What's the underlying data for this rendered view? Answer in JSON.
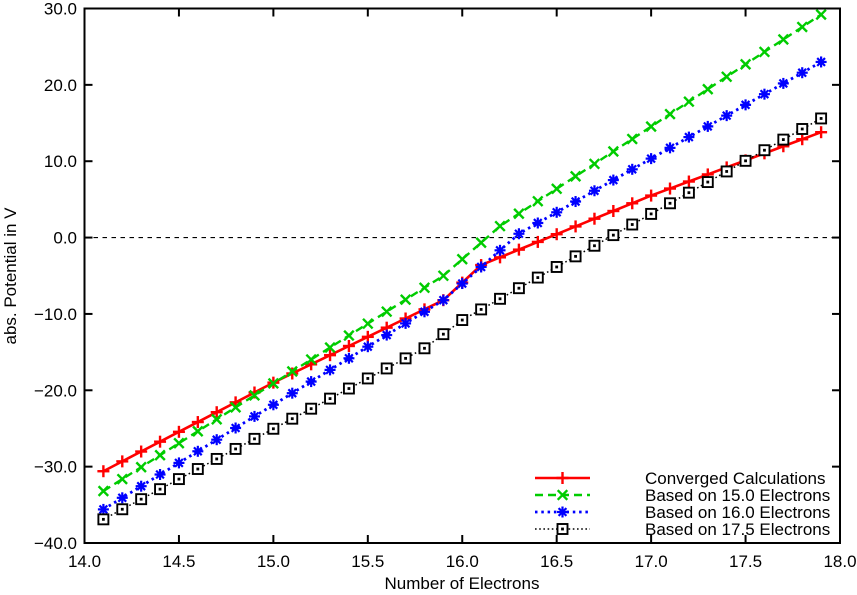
{
  "figure": {
    "background": "#ffffff",
    "axis_color": "#000000"
  },
  "chart_data": {
    "type": "line",
    "title": "",
    "xlabel": "Number of Electrons",
    "ylabel": "abs. Potential in V",
    "xlim": [
      14.0,
      18.0
    ],
    "ylim": [
      -40.0,
      30.0
    ],
    "grid": false,
    "legend_position": "bottom-right-inside",
    "zero_line": {
      "y": 0.0,
      "style": "dashed",
      "color": "#000000"
    },
    "xtick_values": [
      14.0,
      14.5,
      15.0,
      15.5,
      16.0,
      16.5,
      17.0,
      17.5,
      18.0
    ],
    "xtick_labels": [
      "14.0",
      "14.5",
      "15.0",
      "15.5",
      "16.0",
      "16.5",
      "17.0",
      "17.5",
      "18.0"
    ],
    "ytick_values": [
      -40,
      -30,
      -20,
      -10,
      0,
      10,
      20,
      30
    ],
    "ytick_labels": [
      "−40.0",
      "−30.0",
      "−20.0",
      "−10.0",
      "0.0",
      "10.0",
      "20.0",
      "30.0"
    ],
    "x": [
      14.1,
      14.2,
      14.3,
      14.4,
      14.5,
      14.6,
      14.7,
      14.8,
      14.9,
      15.0,
      15.1,
      15.2,
      15.3,
      15.4,
      15.5,
      15.6,
      15.7,
      15.8,
      15.9,
      16.0,
      16.1,
      16.2,
      16.3,
      16.4,
      16.5,
      16.6,
      16.7,
      16.8,
      16.9,
      17.0,
      17.1,
      17.2,
      17.3,
      17.4,
      17.5,
      17.6,
      17.7,
      17.8,
      17.9
    ],
    "series": [
      {
        "name": "Converged Calculations",
        "color": "#ff0000",
        "line": "solid",
        "marker": "plus",
        "values": [
          -30.6,
          -29.31,
          -28.02,
          -26.73,
          -25.44,
          -24.16,
          -22.87,
          -21.58,
          -20.29,
          -19.0,
          -17.8,
          -16.6,
          -15.4,
          -14.2,
          -13.0,
          -11.8,
          -10.6,
          -9.4,
          -8.2,
          -5.9,
          -3.6,
          -2.59,
          -1.58,
          -0.57,
          0.44,
          1.46,
          2.47,
          3.48,
          4.49,
          5.5,
          6.42,
          7.34,
          8.27,
          9.19,
          10.11,
          11.03,
          11.96,
          12.88,
          13.8
        ]
      },
      {
        "name": "Based on 15.0 Electrons",
        "color": "#00cc00",
        "line": "dashed",
        "marker": "cross",
        "values": [
          -33.2,
          -31.63,
          -30.07,
          -28.5,
          -26.93,
          -25.37,
          -23.8,
          -22.23,
          -20.67,
          -19.1,
          -17.53,
          -15.97,
          -14.4,
          -12.83,
          -11.27,
          -9.7,
          -8.13,
          -6.57,
          -5.0,
          -2.83,
          -0.67,
          1.5,
          3.13,
          4.76,
          6.39,
          8.02,
          9.65,
          11.28,
          12.91,
          14.54,
          16.17,
          17.8,
          19.43,
          21.06,
          22.69,
          24.32,
          25.95,
          27.58,
          29.2
        ]
      },
      {
        "name": "Based on 16.0 Electrons",
        "color": "#0000ff",
        "line": "dotted",
        "marker": "asterisk",
        "values": [
          -35.6,
          -34.08,
          -32.56,
          -31.03,
          -29.51,
          -27.99,
          -26.47,
          -24.94,
          -23.42,
          -21.9,
          -20.38,
          -18.86,
          -17.33,
          -15.81,
          -14.29,
          -12.77,
          -11.24,
          -9.72,
          -8.2,
          -6.02,
          -3.85,
          -1.67,
          0.5,
          1.91,
          3.31,
          4.72,
          6.13,
          7.53,
          8.94,
          10.34,
          11.75,
          13.16,
          14.56,
          15.97,
          17.38,
          18.78,
          20.19,
          21.59,
          23.0
        ]
      },
      {
        "name": "Based on 17.5 Electrons",
        "color": "#000000",
        "line": "fine-dotted",
        "marker": "square-dot",
        "values": [
          -36.9,
          -35.58,
          -34.26,
          -32.95,
          -31.63,
          -30.31,
          -28.99,
          -27.68,
          -26.36,
          -25.04,
          -23.72,
          -22.41,
          -21.09,
          -19.77,
          -18.45,
          -17.14,
          -15.82,
          -14.5,
          -12.65,
          -10.8,
          -9.41,
          -8.02,
          -6.63,
          -5.24,
          -3.85,
          -2.46,
          -1.07,
          0.32,
          1.71,
          3.1,
          4.49,
          5.88,
          7.27,
          8.66,
          10.05,
          11.44,
          12.83,
          14.22,
          15.6
        ]
      }
    ]
  }
}
